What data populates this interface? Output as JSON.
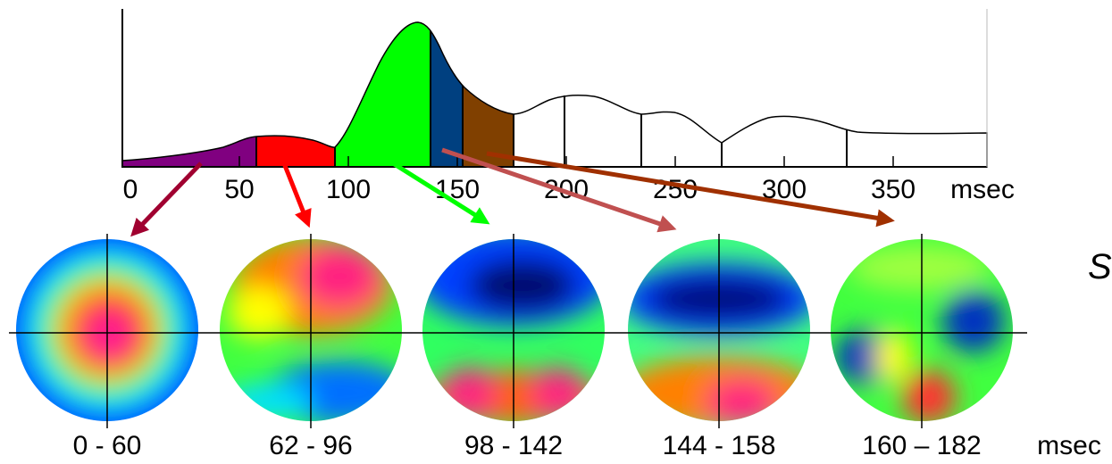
{
  "axis": {
    "ticks": [
      "0",
      "50",
      "100",
      "150",
      "200",
      "250",
      "300",
      "350"
    ],
    "unit": "msec"
  },
  "maps": {
    "labels": [
      "0 - 60",
      "62 - 96",
      "98 - 142",
      "144 - 158",
      "160 – 182"
    ],
    "unit": "msec"
  },
  "side_text": "S"
}
